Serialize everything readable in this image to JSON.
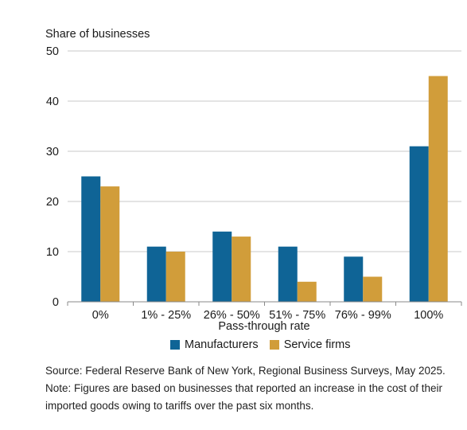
{
  "chart_data": {
    "type": "bar",
    "ylabel": "Share of businesses",
    "xlabel": "Pass-through rate",
    "ylim": [
      0,
      50
    ],
    "yticks": [
      0,
      10,
      20,
      30,
      40,
      50
    ],
    "grid": true,
    "legend_position": "bottom",
    "categories": [
      "0%",
      "1% - 25%",
      "26% - 50%",
      "51% - 75%",
      "76% - 99%",
      "100%"
    ],
    "series": [
      {
        "name": "Manufacturers",
        "color": "#0f6496",
        "values": [
          25,
          11,
          14,
          11,
          9,
          31
        ]
      },
      {
        "name": "Service firms",
        "color": "#d19d3a",
        "values": [
          23,
          10,
          13,
          4,
          5,
          45
        ]
      }
    ]
  },
  "notes": {
    "source": "Source: Federal Reserve Bank of New York, Regional Business Surveys, May 2025.",
    "note": "Note: Figures are based on businesses that reported an increase in the cost of their imported goods owing to tariffs over the past six months."
  }
}
